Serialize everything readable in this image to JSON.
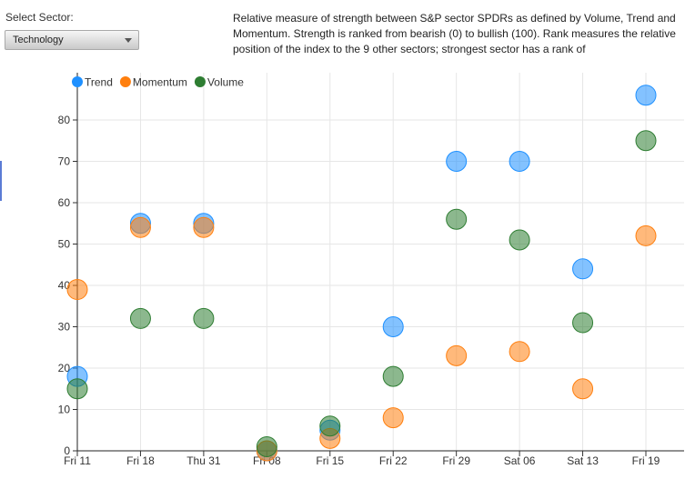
{
  "controls": {
    "sector_label": "Select Sector:",
    "sector_value": "Technology"
  },
  "description": "Relative measure of strength between S&P sector SPDRs as defined by Volume, Trend and Momentum. Strength is ranked from bearish (0) to bullish (100). Rank measures the relative position of the index to the 9 other sectors; strongest sector has a rank of",
  "chart_data": {
    "type": "scatter",
    "title": "",
    "xlabel": "",
    "ylabel": "",
    "ylim": [
      0,
      88
    ],
    "yticks": [
      0,
      10,
      20,
      30,
      40,
      50,
      60,
      70,
      80
    ],
    "grid": true,
    "legend_position": "top-left",
    "categories": [
      "Fri 11",
      "Fri 18",
      "Thu 31",
      "Fri 08",
      "Fri 15",
      "Fri 22",
      "Fri 29",
      "Sat 06",
      "Sat 13",
      "Fri 19"
    ],
    "series": [
      {
        "name": "Trend",
        "color": "#1e90ff",
        "values": [
          18,
          55,
          55,
          0,
          5,
          30,
          70,
          70,
          44,
          86
        ]
      },
      {
        "name": "Momentum",
        "color": "#ff7f0e",
        "values": [
          39,
          54,
          54,
          0,
          3,
          8,
          23,
          24,
          15,
          52
        ]
      },
      {
        "name": "Volume",
        "color": "#2e7d32",
        "values": [
          15,
          32,
          32,
          1,
          6,
          18,
          56,
          51,
          31,
          75
        ]
      }
    ]
  }
}
